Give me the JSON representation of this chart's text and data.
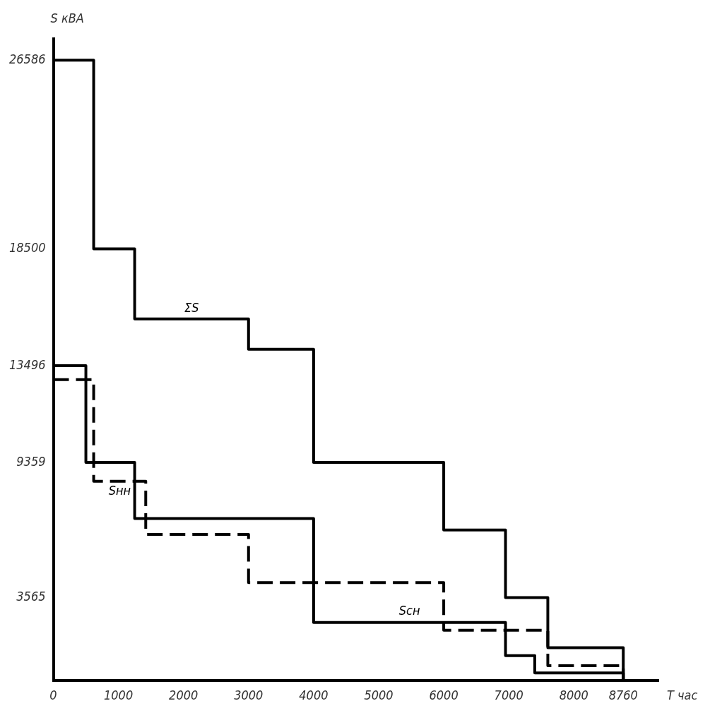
{
  "chart_data": {
    "type": "step",
    "xlabel": "T час",
    "ylabel": "S кВА",
    "xlim": [
      0,
      9300
    ],
    "xticks": [
      0,
      1000,
      2000,
      3000,
      4000,
      5000,
      6000,
      7000,
      8000,
      8760
    ],
    "ylim": [
      0,
      27500
    ],
    "yticks": [
      3565,
      9359,
      13496,
      18500,
      26586
    ],
    "grid": false,
    "legend": false,
    "marker": "none",
    "series": [
      {
        "name": "ΣS",
        "color": "#000000",
        "line_style": "solid",
        "x": [
          0,
          620,
          1250,
          3000,
          4000,
          6000,
          6950,
          7600,
          8760
        ],
        "values": [
          26586,
          18500,
          15500,
          14200,
          9359,
          6460,
          3565,
          1420,
          0
        ]
      },
      {
        "name": "Sнн",
        "color": "#000000",
        "line_style": "dashed",
        "x": [
          0,
          620,
          1420,
          3000,
          6000,
          7600,
          8760
        ],
        "values": [
          12900,
          8550,
          6270,
          4210,
          2170,
          650,
          0
        ]
      },
      {
        "name": "Sсн",
        "color": "#000000",
        "line_style": "solid",
        "x": [
          0,
          500,
          1250,
          4000,
          6950,
          7400,
          8760
        ],
        "values": [
          13496,
          9359,
          6950,
          2500,
          1080,
          340,
          0
        ]
      }
    ]
  }
}
